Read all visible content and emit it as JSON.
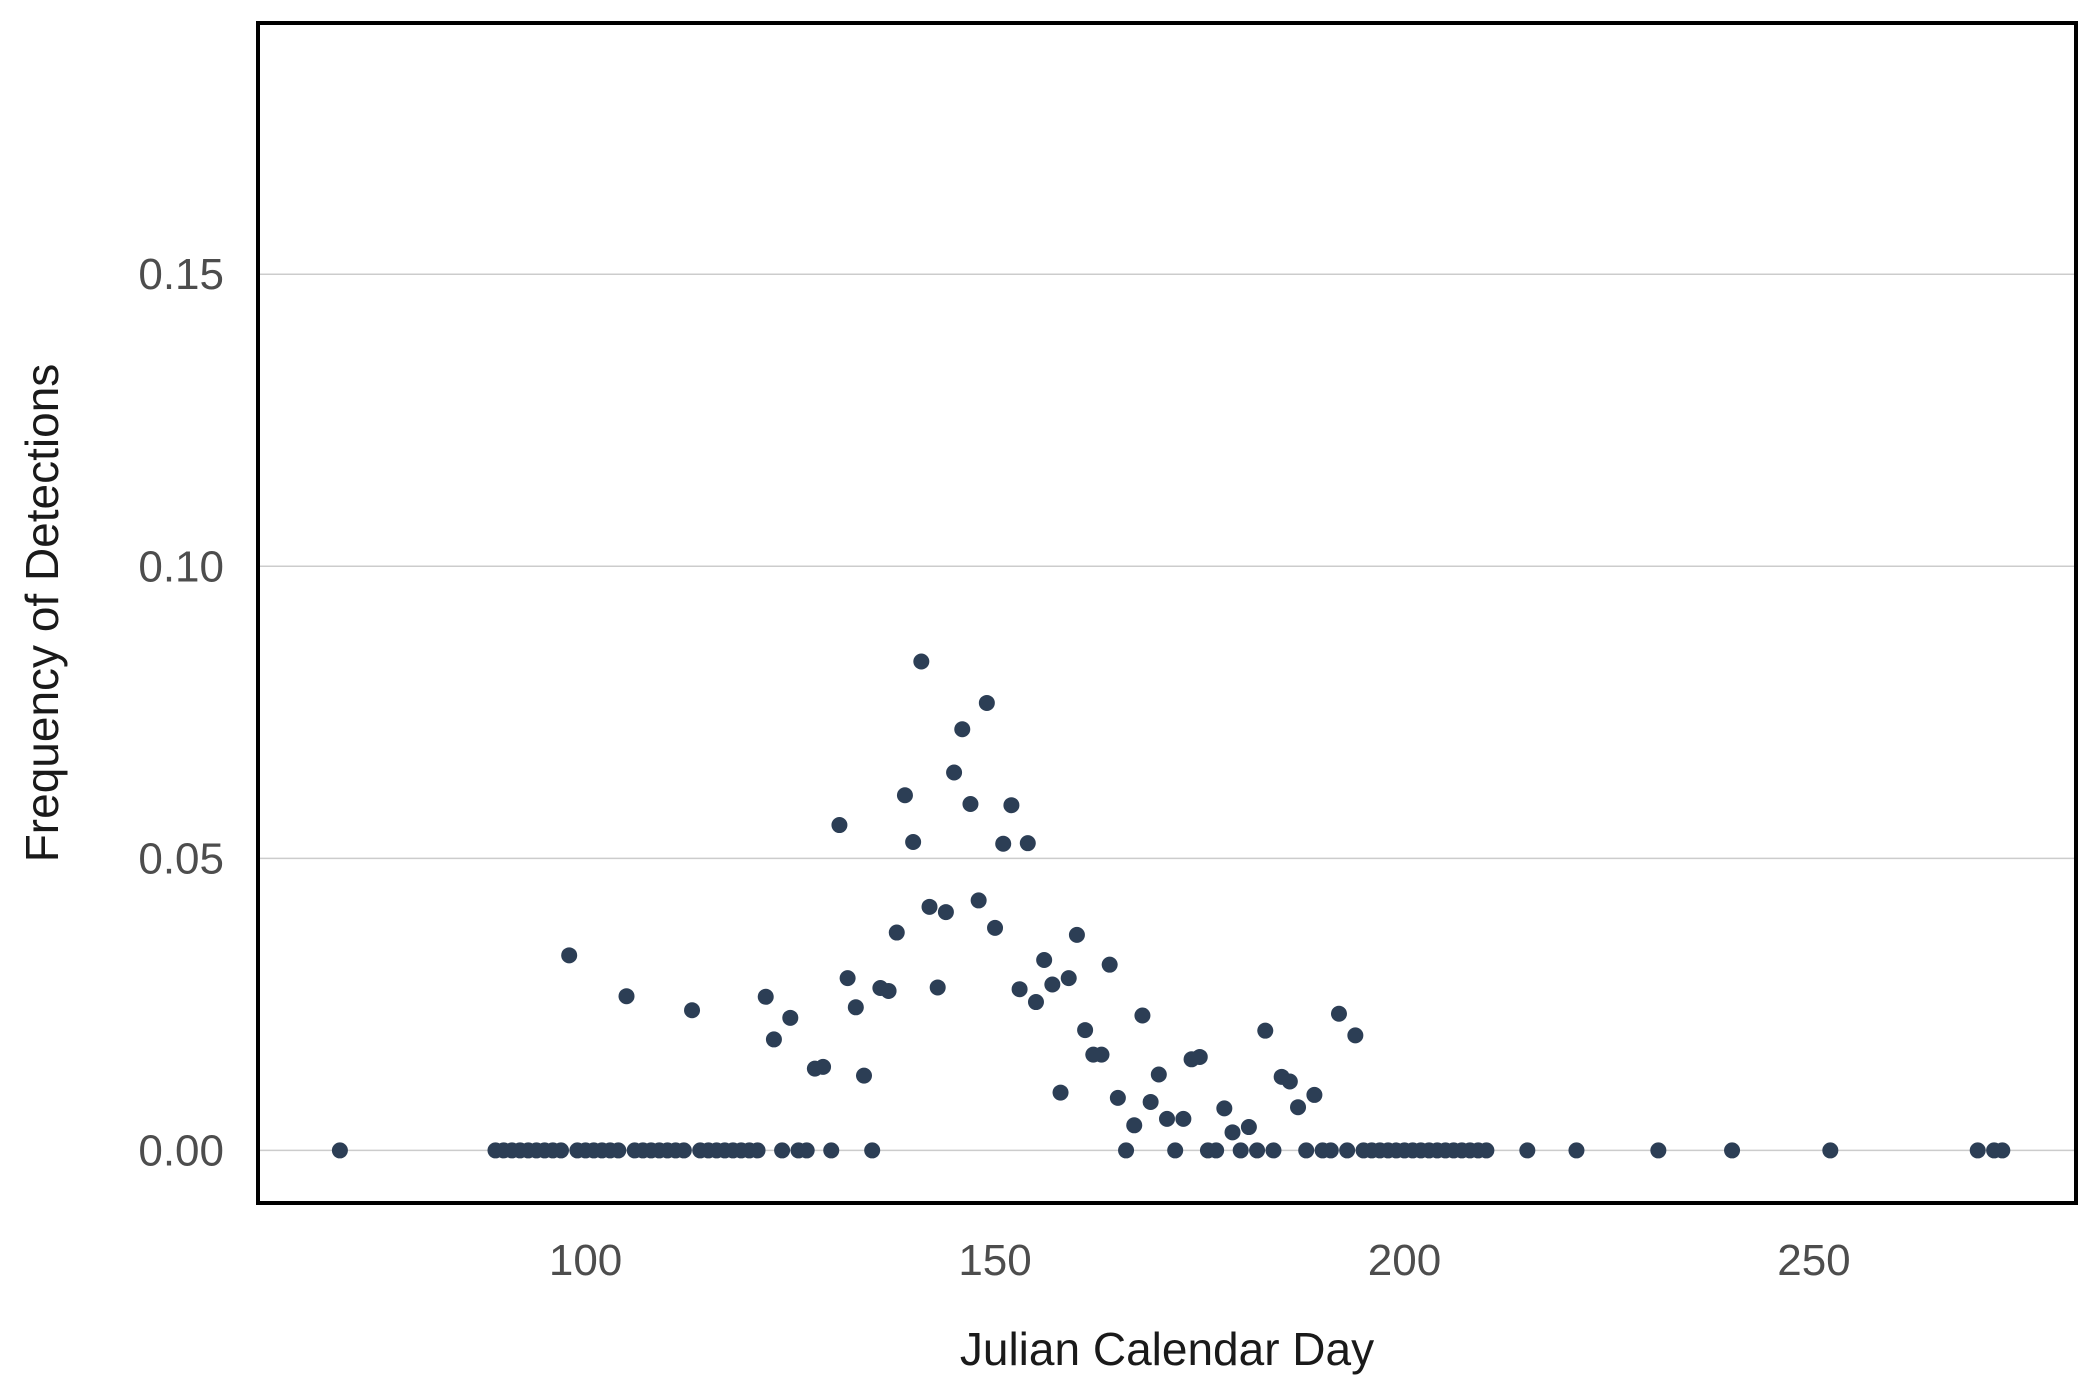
{
  "chart_data": {
    "type": "scatter",
    "title": "",
    "xlabel": "Julian Calendar Day",
    "ylabel": "Frequency of Detections",
    "xlim": [
      60,
      282
    ],
    "ylim": [
      -0.009,
      0.193
    ],
    "x_ticks": [
      100,
      150,
      200,
      250
    ],
    "x_tick_labels": [
      "100",
      "150",
      "200",
      "250"
    ],
    "y_ticks": [
      0,
      0.05,
      0.1,
      0.15
    ],
    "y_tick_labels": [
      "0.00",
      "0.05",
      "0.10",
      "0.15"
    ],
    "grid": "horizontal",
    "legend": "none",
    "point_color": "#2c3e55",
    "series": [
      {
        "points": [
          [
            70,
            0
          ],
          [
            89,
            0
          ],
          [
            90,
            0
          ],
          [
            91,
            0
          ],
          [
            92,
            0
          ],
          [
            93,
            0
          ],
          [
            94,
            0
          ],
          [
            95,
            0
          ],
          [
            96,
            0
          ],
          [
            97,
            0
          ],
          [
            98,
            0.0334
          ],
          [
            99,
            0
          ],
          [
            100,
            0
          ],
          [
            101,
            0
          ],
          [
            102,
            0
          ],
          [
            103,
            0
          ],
          [
            104,
            0
          ],
          [
            105,
            0.0264
          ],
          [
            106,
            0
          ],
          [
            107,
            0
          ],
          [
            108,
            0
          ],
          [
            109,
            0
          ],
          [
            110,
            0
          ],
          [
            111,
            0
          ],
          [
            112,
            0
          ],
          [
            113,
            0.024
          ],
          [
            114,
            0
          ],
          [
            115,
            0
          ],
          [
            116,
            0
          ],
          [
            117,
            0
          ],
          [
            118,
            0
          ],
          [
            119,
            0
          ],
          [
            120,
            0
          ],
          [
            121,
            0
          ],
          [
            122,
            0.0263
          ],
          [
            123,
            0.019
          ],
          [
            124,
            0
          ],
          [
            125,
            0.0227
          ],
          [
            126,
            0
          ],
          [
            127,
            0
          ],
          [
            128,
            0.014
          ],
          [
            129,
            0.0143
          ],
          [
            130,
            0
          ],
          [
            131,
            0.0557
          ],
          [
            132,
            0.0295
          ],
          [
            133,
            0.0245
          ],
          [
            134,
            0.0128
          ],
          [
            135,
            0
          ],
          [
            136,
            0.0278
          ],
          [
            137,
            0.0273
          ],
          [
            138,
            0.0373
          ],
          [
            139,
            0.0608
          ],
          [
            140,
            0.0528
          ],
          [
            141,
            0.0837
          ],
          [
            142,
            0.0417
          ],
          [
            143,
            0.0279
          ],
          [
            144,
            0.0408
          ],
          [
            145,
            0.0647
          ],
          [
            146,
            0.0721
          ],
          [
            147,
            0.0593
          ],
          [
            148,
            0.0428
          ],
          [
            149,
            0.0766
          ],
          [
            150,
            0.0381
          ],
          [
            151,
            0.0525
          ],
          [
            152,
            0.0591
          ],
          [
            153,
            0.0276
          ],
          [
            154,
            0.0526
          ],
          [
            155,
            0.0254
          ],
          [
            156,
            0.0326
          ],
          [
            157,
            0.0284
          ],
          [
            158,
            0.0099
          ],
          [
            159,
            0.0295
          ],
          [
            160,
            0.0369
          ],
          [
            161,
            0.0206
          ],
          [
            162,
            0.0164
          ],
          [
            163,
            0.0164
          ],
          [
            164,
            0.0318
          ],
          [
            165,
            0.009
          ],
          [
            166,
            0
          ],
          [
            167,
            0.0043
          ],
          [
            168,
            0.0231
          ],
          [
            169,
            0.0083
          ],
          [
            170,
            0.013
          ],
          [
            171,
            0.0054
          ],
          [
            172,
            0
          ],
          [
            173,
            0.0054
          ],
          [
            174,
            0.0156
          ],
          [
            175,
            0.016
          ],
          [
            176,
            0
          ],
          [
            177,
            0
          ],
          [
            178,
            0.0072
          ],
          [
            179,
            0.0031
          ],
          [
            180,
            0
          ],
          [
            181,
            0.004
          ],
          [
            182,
            0
          ],
          [
            183,
            0.0205
          ],
          [
            184,
            0
          ],
          [
            185,
            0.0126
          ],
          [
            186,
            0.0118
          ],
          [
            187,
            0.0074
          ],
          [
            188,
            0
          ],
          [
            189,
            0.0095
          ],
          [
            190,
            0
          ],
          [
            191,
            0
          ],
          [
            192,
            0.0234
          ],
          [
            193,
            0
          ],
          [
            194,
            0.0197
          ],
          [
            195,
            0
          ],
          [
            196,
            0
          ],
          [
            197,
            0
          ],
          [
            198,
            0
          ],
          [
            199,
            0
          ],
          [
            200,
            0
          ],
          [
            201,
            0
          ],
          [
            202,
            0
          ],
          [
            203,
            0
          ],
          [
            204,
            0
          ],
          [
            205,
            0
          ],
          [
            206,
            0
          ],
          [
            207,
            0
          ],
          [
            208,
            0
          ],
          [
            209,
            0
          ],
          [
            210,
            0
          ],
          [
            215,
            0
          ],
          [
            221,
            0
          ],
          [
            231,
            0
          ],
          [
            240,
            0
          ],
          [
            252,
            0
          ],
          [
            270,
            0
          ],
          [
            272,
            0
          ],
          [
            273,
            0
          ]
        ]
      }
    ]
  }
}
